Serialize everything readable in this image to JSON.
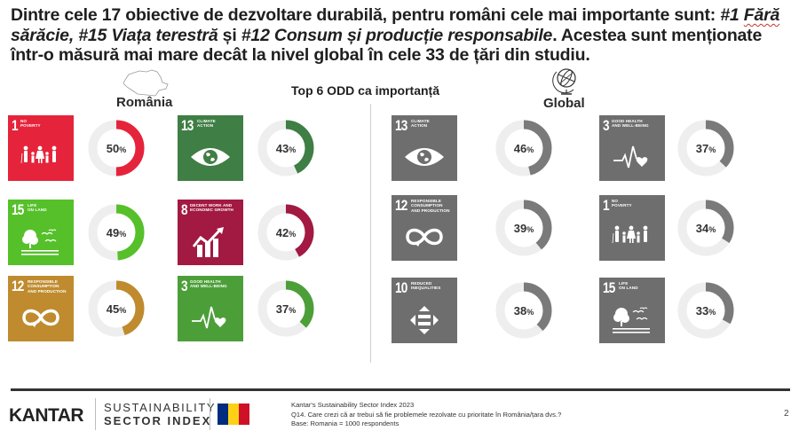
{
  "headline": {
    "part1": "Dintre cele 17 obiective de dezvoltare durabilă, pentru români cele mai importante sunt: ",
    "italic1": "#1 ",
    "italic1b": "Fără",
    "italic1c": " sărăcie, #15 Viața terestră",
    "part2": " și ",
    "italic2": "#12 Consum și producție responsabile",
    "part3": ". Acestea sunt menționate într-o măsură mai mare decât la nivel global în cele 33 de țări din studiu."
  },
  "chart_data": {
    "type": "donut",
    "title": "Top 6 ODD ca importanță",
    "unit": "%",
    "groups": [
      {
        "name": "România",
        "icon": "romania-map-icon",
        "items": [
          {
            "sdg": 1,
            "label": "No\npoverty",
            "value": 50,
            "color": "#e5243b",
            "glyph": "family-icon"
          },
          {
            "sdg": 15,
            "label": "Life\non land",
            "value": 49,
            "color": "#56c02b",
            "glyph": "tree-icon"
          },
          {
            "sdg": 12,
            "label": "Responsible\nconsumption\nand production",
            "value": 45,
            "color": "#bf8b2e",
            "glyph": "infinity-icon"
          },
          {
            "sdg": 13,
            "label": "Climate\naction",
            "value": 43,
            "color": "#3f7e44",
            "glyph": "eye-globe-icon"
          },
          {
            "sdg": 8,
            "label": "Decent work and\neconomic growth",
            "value": 42,
            "color": "#a21942",
            "glyph": "growth-chart-icon"
          },
          {
            "sdg": 3,
            "label": "Good health\nand well-being",
            "value": 37,
            "color": "#4c9f38",
            "glyph": "heartbeat-icon"
          }
        ]
      },
      {
        "name": "Global",
        "icon": "globe-icon",
        "items": [
          {
            "sdg": 13,
            "label": "Climate\naction",
            "value": 46,
            "color": "#6e6e6e",
            "glyph": "eye-globe-icon"
          },
          {
            "sdg": 12,
            "label": "Responsible\nconsumption\nand production",
            "value": 39,
            "color": "#6e6e6e",
            "glyph": "infinity-icon"
          },
          {
            "sdg": 10,
            "label": "Reduced\ninequalities",
            "value": 38,
            "color": "#6e6e6e",
            "glyph": "arrows-equal-icon"
          },
          {
            "sdg": 3,
            "label": "Good health\nand well-being",
            "value": 37,
            "color": "#6e6e6e",
            "glyph": "heartbeat-icon"
          },
          {
            "sdg": 1,
            "label": "No\npoverty",
            "value": 34,
            "color": "#6e6e6e",
            "glyph": "family-icon"
          },
          {
            "sdg": 15,
            "label": "Life\non land",
            "value": 33,
            "color": "#6e6e6e",
            "glyph": "tree-icon"
          }
        ]
      }
    ],
    "ring_track_color": "#eeeeee",
    "global_ring_color": "#7a7a7a"
  },
  "footer": {
    "brand": "KANTAR",
    "index_line1": "SUSTAINABILITY",
    "index_line2": "SECTOR INDEX",
    "flag_colors": [
      "#002b7f",
      "#fcd116",
      "#ce1126"
    ],
    "source_line1": "Kantar's Sustainability Sector Index 2023",
    "source_line2": "Q14. Care crezi că ar trebui să fie problemele rezolvate cu prioritate în România/țara dvs.?",
    "source_line3": "Base: Romania = 1000 respondents",
    "page_number": "2"
  }
}
